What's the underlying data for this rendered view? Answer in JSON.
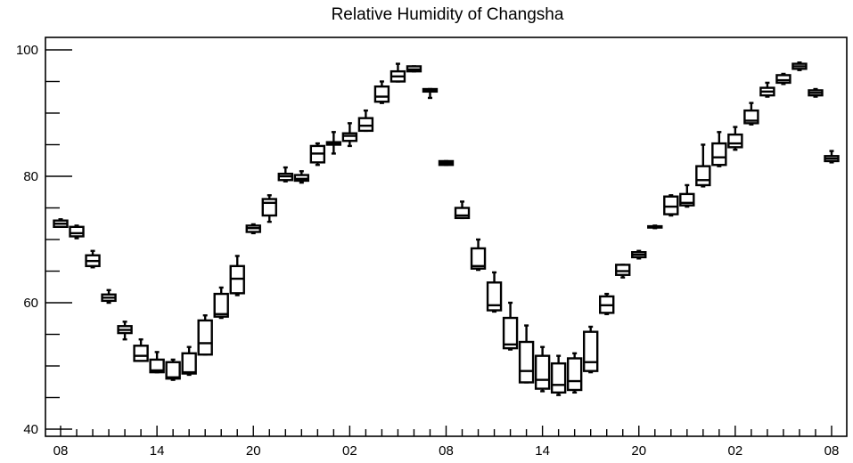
{
  "chart_data": {
    "type": "box",
    "title": "Relative Humidity of Changsha",
    "xlabel": "",
    "ylabel": "",
    "ylim": [
      40,
      102
    ],
    "y_ticks": [
      40,
      60,
      80,
      100
    ],
    "x_ticks": [
      "08",
      "14",
      "20",
      "02",
      "08",
      "14",
      "20",
      "02",
      "08"
    ],
    "x_tick_hours": [
      0,
      6,
      12,
      18,
      24,
      30,
      36,
      42,
      48
    ],
    "hours_per_box": 1,
    "boxes": [
      {
        "hour": 0,
        "min": 72.0,
        "q1": 72.0,
        "median": 72.5,
        "q3": 73.0,
        "max": 73.2
      },
      {
        "hour": 1,
        "min": 70.2,
        "q1": 70.5,
        "median": 71.0,
        "q3": 72.0,
        "max": 72.2
      },
      {
        "hour": 2,
        "min": 65.6,
        "q1": 65.8,
        "median": 66.6,
        "q3": 67.5,
        "max": 68.2
      },
      {
        "hour": 3,
        "min": 60.0,
        "q1": 60.3,
        "median": 60.8,
        "q3": 61.3,
        "max": 62.0
      },
      {
        "hour": 4,
        "min": 54.2,
        "q1": 55.2,
        "median": 55.7,
        "q3": 56.3,
        "max": 57.0
      },
      {
        "hour": 5,
        "min": 50.8,
        "q1": 50.8,
        "median": 51.6,
        "q3": 53.2,
        "max": 54.2
      },
      {
        "hour": 6,
        "min": 49.0,
        "q1": 49.0,
        "median": 49.3,
        "q3": 51.0,
        "max": 52.2
      },
      {
        "hour": 7,
        "min": 47.8,
        "q1": 48.0,
        "median": 48.2,
        "q3": 50.6,
        "max": 51.0
      },
      {
        "hour": 8,
        "min": 48.6,
        "q1": 48.8,
        "median": 49.0,
        "q3": 52.0,
        "max": 53.0
      },
      {
        "hour": 9,
        "min": 51.8,
        "q1": 51.8,
        "median": 53.6,
        "q3": 57.2,
        "max": 58.0
      },
      {
        "hour": 10,
        "min": 57.6,
        "q1": 57.8,
        "median": 58.2,
        "q3": 61.4,
        "max": 62.4
      },
      {
        "hour": 11,
        "min": 61.2,
        "q1": 61.5,
        "median": 63.8,
        "q3": 65.8,
        "max": 67.4
      },
      {
        "hour": 12,
        "min": 71.0,
        "q1": 71.2,
        "median": 71.8,
        "q3": 72.2,
        "max": 72.4
      },
      {
        "hour": 13,
        "min": 72.8,
        "q1": 73.8,
        "median": 75.8,
        "q3": 76.4,
        "max": 77.0
      },
      {
        "hour": 14,
        "min": 79.2,
        "q1": 79.4,
        "median": 80.0,
        "q3": 80.4,
        "max": 81.4
      },
      {
        "hour": 15,
        "min": 79.0,
        "q1": 79.3,
        "median": 79.6,
        "q3": 80.2,
        "max": 80.8
      },
      {
        "hour": 16,
        "min": 81.8,
        "q1": 82.2,
        "median": 83.6,
        "q3": 84.8,
        "max": 85.2
      },
      {
        "hour": 17,
        "min": 83.6,
        "q1": 85.0,
        "median": 85.2,
        "q3": 85.4,
        "max": 87.0
      },
      {
        "hour": 18,
        "min": 84.8,
        "q1": 85.6,
        "median": 86.4,
        "q3": 86.8,
        "max": 88.4
      },
      {
        "hour": 19,
        "min": 87.2,
        "q1": 87.2,
        "median": 88.0,
        "q3": 89.2,
        "max": 90.4
      },
      {
        "hour": 20,
        "min": 91.6,
        "q1": 91.8,
        "median": 92.6,
        "q3": 94.2,
        "max": 95.0
      },
      {
        "hour": 21,
        "min": 95.0,
        "q1": 95.0,
        "median": 95.8,
        "q3": 96.6,
        "max": 97.8
      },
      {
        "hour": 22,
        "min": 96.6,
        "q1": 96.6,
        "median": 96.9,
        "q3": 97.4,
        "max": 97.4
      },
      {
        "hour": 23,
        "min": 92.4,
        "q1": 93.4,
        "median": 93.6,
        "q3": 93.8,
        "max": 93.8
      },
      {
        "hour": 24,
        "min": 81.8,
        "q1": 81.8,
        "median": 82.1,
        "q3": 82.4,
        "max": 82.4
      },
      {
        "hour": 25,
        "min": 73.4,
        "q1": 73.4,
        "median": 73.8,
        "q3": 75.0,
        "max": 76.0
      },
      {
        "hour": 26,
        "min": 65.2,
        "q1": 65.4,
        "median": 65.8,
        "q3": 68.6,
        "max": 70.0
      },
      {
        "hour": 27,
        "min": 58.6,
        "q1": 58.8,
        "median": 59.6,
        "q3": 63.2,
        "max": 64.8
      },
      {
        "hour": 28,
        "min": 52.6,
        "q1": 52.8,
        "median": 53.4,
        "q3": 57.6,
        "max": 60.0
      },
      {
        "hour": 29,
        "min": 47.4,
        "q1": 47.4,
        "median": 49.2,
        "q3": 53.8,
        "max": 56.4
      },
      {
        "hour": 30,
        "min": 46.0,
        "q1": 46.4,
        "median": 47.8,
        "q3": 51.6,
        "max": 53.0
      },
      {
        "hour": 31,
        "min": 45.4,
        "q1": 45.8,
        "median": 47.0,
        "q3": 50.4,
        "max": 51.6
      },
      {
        "hour": 32,
        "min": 45.8,
        "q1": 46.2,
        "median": 47.6,
        "q3": 51.2,
        "max": 52.0
      },
      {
        "hour": 33,
        "min": 49.0,
        "q1": 49.2,
        "median": 50.6,
        "q3": 55.4,
        "max": 56.2
      },
      {
        "hour": 34,
        "min": 58.2,
        "q1": 58.4,
        "median": 59.6,
        "q3": 61.0,
        "max": 61.4
      },
      {
        "hour": 35,
        "min": 64.0,
        "q1": 64.4,
        "median": 65.0,
        "q3": 66.0,
        "max": 66.0
      },
      {
        "hour": 36,
        "min": 67.0,
        "q1": 67.2,
        "median": 67.6,
        "q3": 68.0,
        "max": 68.2
      },
      {
        "hour": 37,
        "min": 71.8,
        "q1": 71.9,
        "median": 72.0,
        "q3": 72.1,
        "max": 72.2
      },
      {
        "hour": 38,
        "min": 73.8,
        "q1": 74.0,
        "median": 75.2,
        "q3": 76.8,
        "max": 77.0
      },
      {
        "hour": 39,
        "min": 75.2,
        "q1": 75.4,
        "median": 75.8,
        "q3": 77.2,
        "max": 78.6
      },
      {
        "hour": 40,
        "min": 78.4,
        "q1": 78.6,
        "median": 79.4,
        "q3": 81.6,
        "max": 85.0
      },
      {
        "hour": 41,
        "min": 81.6,
        "q1": 81.8,
        "median": 83.0,
        "q3": 85.2,
        "max": 87.0
      },
      {
        "hour": 42,
        "min": 84.2,
        "q1": 84.6,
        "median": 85.2,
        "q3": 86.6,
        "max": 87.8
      },
      {
        "hour": 43,
        "min": 88.2,
        "q1": 88.4,
        "median": 88.8,
        "q3": 90.4,
        "max": 91.6
      },
      {
        "hour": 44,
        "min": 92.6,
        "q1": 92.8,
        "median": 93.4,
        "q3": 94.0,
        "max": 94.8
      },
      {
        "hour": 45,
        "min": 94.6,
        "q1": 94.8,
        "median": 95.2,
        "q3": 96.0,
        "max": 96.2
      },
      {
        "hour": 46,
        "min": 96.8,
        "q1": 97.0,
        "median": 97.4,
        "q3": 97.8,
        "max": 98.0
      },
      {
        "hour": 47,
        "min": 92.6,
        "q1": 92.8,
        "median": 93.2,
        "q3": 93.6,
        "max": 93.8
      },
      {
        "hour": 48,
        "min": 82.2,
        "q1": 82.4,
        "median": 82.8,
        "q3": 83.2,
        "max": 84.0
      }
    ],
    "grid": false,
    "legend": "none"
  }
}
